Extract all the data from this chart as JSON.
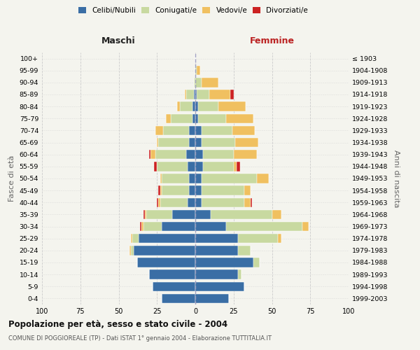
{
  "age_groups": [
    "0-4",
    "5-9",
    "10-14",
    "15-19",
    "20-24",
    "25-29",
    "30-34",
    "35-39",
    "40-44",
    "45-49",
    "50-54",
    "55-59",
    "60-64",
    "65-69",
    "70-74",
    "75-79",
    "80-84",
    "85-89",
    "90-94",
    "95-99",
    "100+"
  ],
  "birth_years": [
    "1999-2003",
    "1994-1998",
    "1989-1993",
    "1984-1988",
    "1979-1983",
    "1974-1978",
    "1969-1973",
    "1964-1968",
    "1959-1963",
    "1954-1958",
    "1949-1953",
    "1944-1948",
    "1939-1943",
    "1934-1938",
    "1929-1933",
    "1924-1928",
    "1919-1923",
    "1914-1918",
    "1909-1913",
    "1904-1908",
    "≤ 1903"
  ],
  "maschi": {
    "celibi": [
      22,
      28,
      30,
      38,
      40,
      37,
      22,
      15,
      5,
      4,
      4,
      5,
      6,
      4,
      4,
      2,
      2,
      1,
      0,
      0,
      0
    ],
    "coniugati": [
      0,
      0,
      0,
      0,
      2,
      4,
      12,
      17,
      18,
      18,
      18,
      20,
      20,
      20,
      17,
      14,
      8,
      5,
      1,
      0,
      0
    ],
    "vedovi": [
      0,
      0,
      0,
      0,
      1,
      1,
      1,
      1,
      1,
      1,
      1,
      0,
      3,
      1,
      5,
      3,
      2,
      1,
      0,
      0,
      0
    ],
    "divorziati": [
      0,
      0,
      0,
      0,
      0,
      0,
      1,
      1,
      1,
      1,
      0,
      2,
      1,
      0,
      0,
      0,
      0,
      0,
      0,
      0,
      0
    ]
  },
  "femmine": {
    "nubili": [
      22,
      32,
      28,
      38,
      28,
      28,
      20,
      10,
      4,
      4,
      4,
      5,
      5,
      4,
      4,
      2,
      2,
      1,
      0,
      0,
      0
    ],
    "coniugate": [
      0,
      0,
      2,
      4,
      8,
      26,
      50,
      40,
      28,
      28,
      36,
      20,
      20,
      22,
      20,
      18,
      13,
      8,
      4,
      1,
      0
    ],
    "vedove": [
      0,
      0,
      0,
      0,
      0,
      2,
      4,
      6,
      4,
      4,
      8,
      2,
      15,
      15,
      15,
      18,
      18,
      14,
      11,
      2,
      0
    ],
    "divorziate": [
      0,
      0,
      0,
      0,
      0,
      0,
      0,
      0,
      1,
      0,
      0,
      2,
      0,
      0,
      0,
      0,
      0,
      2,
      0,
      0,
      0
    ]
  },
  "colors": {
    "celibi": "#3a6ea5",
    "coniugati": "#c8d9a0",
    "vedovi": "#f0c060",
    "divorziati": "#cc2222"
  },
  "bg_color": "#f4f4ee",
  "title": "Popolazione per età, sesso e stato civile - 2004",
  "subtitle": "COMUNE DI POGGIOREALE (TP) - Dati ISTAT 1° gennaio 2004 - Elaborazione TUTTITALIA.IT",
  "xlabel_left": "Maschi",
  "xlabel_right": "Femmine",
  "ylabel_left": "Fasce di età",
  "ylabel_right": "Anni di nascita",
  "xlim": 100
}
